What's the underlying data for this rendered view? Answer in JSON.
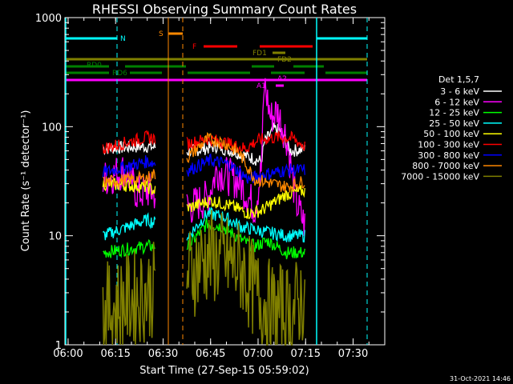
{
  "chart_data": {
    "type": "line",
    "title": "RHESSI Observing Summary Count Rates",
    "xlabel": "Start Time (27-Sep-15 05:59:02)",
    "ylabel": "Count Rate (s⁻¹ detector⁻¹)",
    "y_scale": "log",
    "ylim": [
      1,
      1000
    ],
    "xlim_minutes": [
      0,
      101
    ],
    "x_ticks": [
      {
        "min": 1,
        "label": "06:00"
      },
      {
        "min": 16,
        "label": "06:15"
      },
      {
        "min": 31,
        "label": "06:30"
      },
      {
        "min": 46,
        "label": "06:45"
      },
      {
        "min": 61,
        "label": "07:00"
      },
      {
        "min": 76,
        "label": "07:15"
      },
      {
        "min": 91,
        "label": "07:30"
      }
    ],
    "y_ticks": [
      {
        "value": 1,
        "label": "1"
      },
      {
        "value": 10,
        "label": "10"
      },
      {
        "value": 100,
        "label": "100"
      },
      {
        "value": 1000,
        "label": "1000"
      }
    ],
    "legend_title": "Det 1,5,7",
    "legend_position": "right",
    "series": [
      {
        "name": "3 - 6 keV",
        "color": "#ffffff",
        "values": [
          [
            12,
            63
          ],
          [
            26,
            66
          ],
          [
            39,
            59
          ],
          [
            48,
            66
          ],
          [
            55,
            57
          ],
          [
            62,
            48
          ],
          [
            63,
            72
          ],
          [
            66,
            95
          ],
          [
            68,
            92
          ],
          [
            71,
            60
          ],
          [
            76,
            62
          ]
        ]
      },
      {
        "name": "6 - 12 keV",
        "color": "#ff00ff",
        "values": [
          [
            12,
            33
          ],
          [
            19,
            40
          ],
          [
            23,
            24
          ],
          [
            26,
            26
          ],
          [
            39,
            18
          ],
          [
            45,
            22
          ],
          [
            48,
            40
          ],
          [
            55,
            31
          ],
          [
            60,
            18
          ],
          [
            62,
            40
          ],
          [
            63,
            250
          ],
          [
            65,
            120
          ],
          [
            67,
            140
          ],
          [
            70,
            80
          ],
          [
            73,
            20
          ],
          [
            76,
            12
          ]
        ]
      },
      {
        "name": "12 - 25 keV",
        "color": "#00ff00",
        "values": [
          [
            12,
            7
          ],
          [
            26,
            8
          ],
          [
            39,
            8
          ],
          [
            45,
            13
          ],
          [
            50,
            12
          ],
          [
            56,
            9
          ],
          [
            60,
            8
          ],
          [
            64,
            9
          ],
          [
            70,
            7
          ],
          [
            76,
            7
          ]
        ]
      },
      {
        "name": "25 - 50 keV",
        "color": "#00ffff",
        "values": [
          [
            12,
            10
          ],
          [
            26,
            14
          ],
          [
            39,
            10
          ],
          [
            45,
            16
          ],
          [
            50,
            15
          ],
          [
            56,
            12
          ],
          [
            62,
            11
          ],
          [
            70,
            10
          ],
          [
            76,
            10
          ]
        ]
      },
      {
        "name": "50 - 100 keV",
        "color": "#ffff00",
        "values": [
          [
            12,
            30
          ],
          [
            26,
            28
          ],
          [
            39,
            18
          ],
          [
            46,
            21
          ],
          [
            52,
            19
          ],
          [
            58,
            16
          ],
          [
            62,
            17
          ],
          [
            70,
            24
          ],
          [
            76,
            26
          ]
        ]
      },
      {
        "name": "100 - 300 keV",
        "color": "#ff0000",
        "values": [
          [
            12,
            63
          ],
          [
            26,
            80
          ],
          [
            39,
            70
          ],
          [
            45,
            77
          ],
          [
            50,
            72
          ],
          [
            57,
            63
          ],
          [
            61,
            75
          ],
          [
            67,
            80
          ],
          [
            72,
            78
          ],
          [
            76,
            65
          ]
        ]
      },
      {
        "name": "300 - 800 keV",
        "color": "#0000ff",
        "values": [
          [
            12,
            38
          ],
          [
            26,
            48
          ],
          [
            39,
            40
          ],
          [
            46,
            49
          ],
          [
            52,
            45
          ],
          [
            58,
            33
          ],
          [
            62,
            36
          ],
          [
            70,
            40
          ],
          [
            76,
            40
          ]
        ]
      },
      {
        "name": "800 - 7000 keV",
        "color": "#ff8800",
        "values": [
          [
            12,
            31
          ],
          [
            26,
            34
          ],
          [
            39,
            53
          ],
          [
            45,
            77
          ],
          [
            50,
            72
          ],
          [
            55,
            58
          ],
          [
            60,
            33
          ],
          [
            70,
            28
          ],
          [
            76,
            32
          ]
        ]
      },
      {
        "name": "7000 - 15000 keV",
        "color": "#808000",
        "values": [
          [
            12,
            2
          ],
          [
            26,
            3
          ],
          [
            39,
            4.5
          ],
          [
            45,
            6.5
          ],
          [
            50,
            6
          ],
          [
            56,
            5
          ],
          [
            60,
            3
          ],
          [
            66,
            2
          ],
          [
            72,
            2
          ],
          [
            76,
            3
          ]
        ]
      }
    ],
    "annotations": [
      "N",
      "S",
      "F",
      "FD1",
      "FD2",
      "RD0",
      "RD6",
      "A1",
      "A2"
    ],
    "timestamp": "31-Oct-2021 14:46"
  }
}
